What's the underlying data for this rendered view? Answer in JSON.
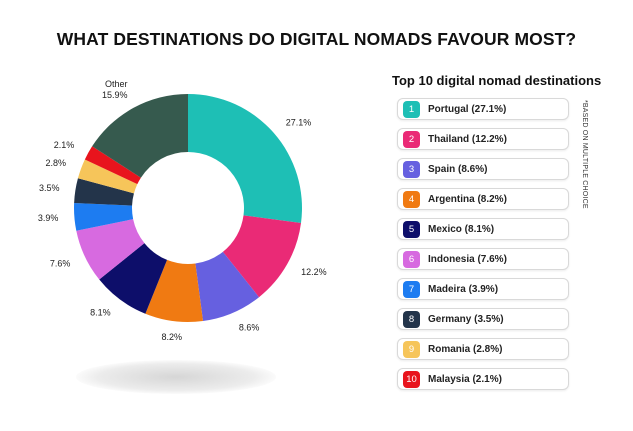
{
  "title": "WHAT DESTINATIONS DO DIGITAL NOMADS FAVOUR MOST?",
  "legend_title": "Top 10 digital nomad destinations",
  "side_note": "*BASED ON MULTIPLE CHOICE",
  "chart_data": {
    "type": "pie",
    "donut": true,
    "slices": [
      {
        "label": "Portugal",
        "value": 27.1,
        "value_label": "27.1%",
        "color": "#1ebfb5"
      },
      {
        "label": "Thailand",
        "value": 12.2,
        "value_label": "12.2%",
        "color": "#ea2a76"
      },
      {
        "label": "Spain",
        "value": 8.6,
        "value_label": "8.6%",
        "color": "#6660e0"
      },
      {
        "label": "Argentina",
        "value": 8.2,
        "value_label": "8.2%",
        "color": "#f07a12"
      },
      {
        "label": "Mexico",
        "value": 8.1,
        "value_label": "8.1%",
        "color": "#0d0e6a"
      },
      {
        "label": "Indonesia",
        "value": 7.6,
        "value_label": "7.6%",
        "color": "#d76ae0"
      },
      {
        "label": "Madeira",
        "value": 3.9,
        "value_label": "3.9%",
        "color": "#1d7cf1"
      },
      {
        "label": "Germany",
        "value": 3.5,
        "value_label": "3.5%",
        "color": "#23344a"
      },
      {
        "label": "Romania",
        "value": 2.8,
        "value_label": "2.8%",
        "color": "#f6c55a"
      },
      {
        "label": "Malaysia",
        "value": 2.1,
        "value_label": "2.1%",
        "color": "#e8141d"
      },
      {
        "label": "Other",
        "value": 15.9,
        "value_label": "15.9%",
        "color": "#365a4e"
      }
    ]
  },
  "legend_items": [
    {
      "num": "1",
      "label": "Portugal (27.1%)",
      "color": "#1ebfb5"
    },
    {
      "num": "2",
      "label": "Thailand (12.2%)",
      "color": "#ea2a76"
    },
    {
      "num": "3",
      "label": "Spain (8.6%)",
      "color": "#6660e0"
    },
    {
      "num": "4",
      "label": "Argentina (8.2%)",
      "color": "#f07a12"
    },
    {
      "num": "5",
      "label": "Mexico (8.1%)",
      "color": "#0d0e6a"
    },
    {
      "num": "6",
      "label": "Indonesia (7.6%)",
      "color": "#d76ae0"
    },
    {
      "num": "7",
      "label": "Madeira (3.9%)",
      "color": "#1d7cf1"
    },
    {
      "num": "8",
      "label": "Germany (3.5%)",
      "color": "#23344a"
    },
    {
      "num": "9",
      "label": "Romania (2.8%)",
      "color": "#f6c55a"
    },
    {
      "num": "10",
      "label": "Malaysia (2.1%)",
      "color": "#e8141d"
    }
  ]
}
